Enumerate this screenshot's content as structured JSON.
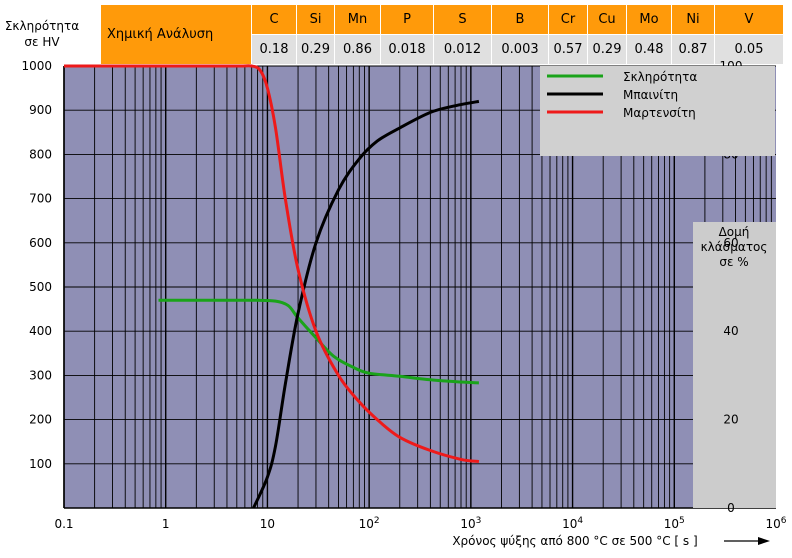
{
  "hv_axis_title": [
    "Σκληρότητα",
    "σε HV"
  ],
  "chemical_analysis": {
    "label": "Χημική Ανάλυση",
    "elements": [
      "C",
      "Si",
      "Mn",
      "P",
      "S",
      "B",
      "Cr",
      "Cu",
      "Mo",
      "Ni",
      "V"
    ],
    "values": [
      "0.18",
      "0.29",
      "0.86",
      "0.018",
      "0.012",
      "0.003",
      "0.57",
      "0.29",
      "0.48",
      "0.87",
      "0.05"
    ]
  },
  "colors": {
    "plot_bg": "#8f8fb5",
    "grid": "#000000",
    "legend_bg": "#d0d0d0",
    "side_panel_bg": "#cccccc",
    "header_orange": "#ff9a0a",
    "hardness": "#1aa31a",
    "bainite": "#000000",
    "martensite": "#ee1a1a"
  },
  "chart_data": {
    "type": "line",
    "xlabel": "Χρόνος ψύξης από 800 °C σε 500 °C [ s ]",
    "x_scale": "log",
    "xlim": [
      0.1,
      1000000
    ],
    "x_ticks": [
      {
        "value": 0.1,
        "base": "0.1",
        "exp": ""
      },
      {
        "value": 1,
        "base": "1",
        "exp": ""
      },
      {
        "value": 10,
        "base": "10",
        "exp": ""
      },
      {
        "value": 100,
        "base": "10",
        "exp": "2"
      },
      {
        "value": 1000,
        "base": "10",
        "exp": "3"
      },
      {
        "value": 10000,
        "base": "10",
        "exp": "4"
      },
      {
        "value": 100000,
        "base": "10",
        "exp": "5"
      },
      {
        "value": 1000000,
        "base": "10",
        "exp": "6"
      }
    ],
    "ylim_left": [
      0,
      1000
    ],
    "y_ticks_left": [
      "100",
      "200",
      "300",
      "400",
      "500",
      "600",
      "700",
      "800",
      "900",
      "1000"
    ],
    "right_axis_title": [
      "Δομή",
      "κλάσματος",
      "σε %"
    ],
    "ylim_right": [
      0,
      100
    ],
    "y_ticks_right": [
      "0",
      "20",
      "40",
      "60",
      "80",
      "100"
    ],
    "grid": true,
    "legend_position": "top-right",
    "series": [
      {
        "name": "Σκληρότητα",
        "axis": "left",
        "x": [
          0.85,
          2,
          5,
          8,
          12,
          16,
          20,
          30,
          45,
          70,
          100,
          200,
          400,
          800,
          1200
        ],
        "y": [
          470,
          470,
          470,
          470,
          468,
          458,
          430,
          385,
          343,
          318,
          305,
          298,
          290,
          285,
          283
        ]
      },
      {
        "name": "Μπαινίτη",
        "axis": "right",
        "x": [
          7.3,
          10,
          12,
          15,
          20,
          30,
          50,
          80,
          120,
          200,
          400,
          700,
          1200
        ],
        "y": [
          0,
          7,
          14,
          28,
          44,
          60,
          72,
          79,
          83,
          86,
          89.5,
          91,
          92
        ]
      },
      {
        "name": "Μαρτενσίτη",
        "axis": "right",
        "x": [
          0.1,
          1,
          5,
          7,
          8.5,
          10,
          12,
          15,
          20,
          30,
          50,
          80,
          120,
          200,
          400,
          800,
          1200
        ],
        "y": [
          100,
          100,
          100,
          100,
          99,
          95,
          86,
          70,
          54,
          40,
          30,
          24,
          20,
          16,
          13,
          11,
          10.5
        ]
      }
    ]
  }
}
